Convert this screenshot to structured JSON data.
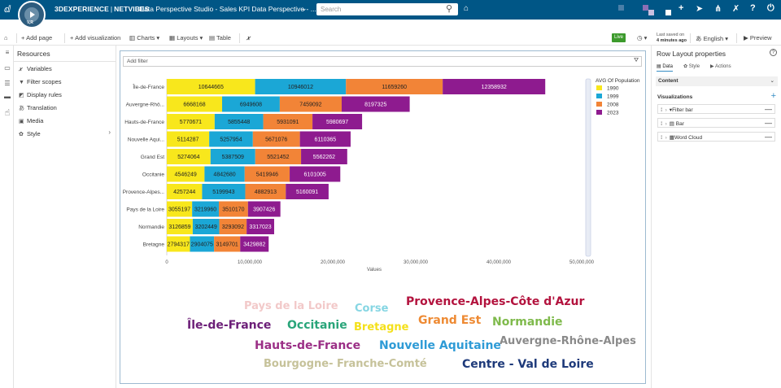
{
  "topbar": {
    "compass_label": "V,R",
    "brand_3d": "3DEXPERIENCE",
    "brand_sep": "|",
    "brand_nv": "NETVIBES",
    "app_name": "Data Perspective Studio - Sales KPI Data Perspective - ...",
    "search_placeholder": "Search"
  },
  "toolbar": {
    "add_page": "Add page",
    "add_visualization": "Add visualization",
    "charts": "Charts",
    "layouts": "Layouts",
    "table": "Table",
    "live": "Live",
    "last_saved_label": "Last saved on",
    "last_saved_value": "4 minutes ago",
    "language": "English",
    "preview": "Preview"
  },
  "resources": {
    "title": "Resources",
    "items": [
      {
        "label": "Variables",
        "icon": "fx-icon"
      },
      {
        "label": "Filter scopes",
        "icon": "filter-icon"
      },
      {
        "label": "Display rules",
        "icon": "display-rules-icon"
      },
      {
        "label": "Translation",
        "icon": "translation-icon"
      },
      {
        "label": "Media",
        "icon": "media-icon"
      },
      {
        "label": "Style",
        "icon": "style-icon"
      }
    ]
  },
  "canvas": {
    "filter_placeholder": "Add filter"
  },
  "chart_data": {
    "type": "bar",
    "orientation": "horizontal",
    "stacked": true,
    "categories": [
      "Île-de-France",
      "Auvergne-Rhô...",
      "Hauts-de-France",
      "Nouvelle Aqui...",
      "Grand Est",
      "Occitanie",
      "Provence-Alpes...",
      "Pays de la Loire",
      "Normandie",
      "Bretagne"
    ],
    "series": [
      {
        "name": "1990",
        "color": "#f8e71c",
        "values": [
          10644665,
          6668168,
          5770671,
          5114287,
          5274064,
          4546249,
          4257244,
          3055197,
          3126859,
          2794317
        ]
      },
      {
        "name": "1999",
        "color": "#1ba7d6",
        "values": [
          10946012,
          6949608,
          5855448,
          5257954,
          5387509,
          4842680,
          5199943,
          3219960,
          3202449,
          2904075
        ]
      },
      {
        "name": "2008",
        "color": "#f28437",
        "values": [
          11659260,
          7459092,
          5931091,
          5671076,
          5521452,
          5419946,
          4882913,
          3510170,
          3293092,
          3149701
        ]
      },
      {
        "name": "2023",
        "color": "#8e1b8f",
        "values": [
          12358932,
          8197325,
          5980697,
          6110365,
          5562262,
          6101005,
          5160091,
          3907426,
          3317023,
          3429882
        ]
      }
    ],
    "xlabel": "Values",
    "ylabel": "",
    "xlim": [
      0,
      50000000
    ],
    "xticks": [
      "0",
      "10,000,000",
      "20,000,000",
      "30,000,000",
      "40,000,000",
      "50,000,000"
    ],
    "legend_title": "AVG Of Population",
    "legend_position": "right",
    "grid": false
  },
  "word_cloud": {
    "words": [
      {
        "text": "Pays de la Loire",
        "color": "#f2c9c9",
        "size": 13
      },
      {
        "text": "Corse",
        "color": "#86d6e3",
        "size": 13
      },
      {
        "text": "Provence-Alpes-Côte d'Azur",
        "color": "#b3133e",
        "size": 14
      },
      {
        "text": "Grand Est",
        "color": "#ee8a33",
        "size": 14
      },
      {
        "text": "Normandie",
        "color": "#7fba4c",
        "size": 14
      },
      {
        "text": "Île-de-France",
        "color": "#6c1f78",
        "size": 14
      },
      {
        "text": "Occitanie",
        "color": "#2aa57a",
        "size": 14
      },
      {
        "text": "Bretagne",
        "color": "#f4e01a",
        "size": 13
      },
      {
        "text": "Auvergne-Rhône-Alpes",
        "color": "#8a8a8a",
        "size": 13
      },
      {
        "text": "Hauts-de-France",
        "color": "#9b2f86",
        "size": 14
      },
      {
        "text": "Nouvelle Aquitaine",
        "color": "#2e9bd6",
        "size": 14
      },
      {
        "text": "Bourgogne- Franche-Comté",
        "color": "#c6c29a",
        "size": 13
      },
      {
        "text": "Centre - Val de Loire",
        "color": "#1e3a7a",
        "size": 14
      }
    ]
  },
  "props": {
    "title": "Row Layout properties",
    "tabs": [
      "Data",
      "Style",
      "Actions"
    ],
    "content_label": "Content",
    "visualizations_label": "Visualizations",
    "visualizations": [
      {
        "label": "Filter bar",
        "icon": "filter-bar-icon"
      },
      {
        "label": "Bar",
        "icon": "bar-chart-icon"
      },
      {
        "label": "Word Cloud",
        "icon": "word-cloud-icon"
      }
    ]
  }
}
